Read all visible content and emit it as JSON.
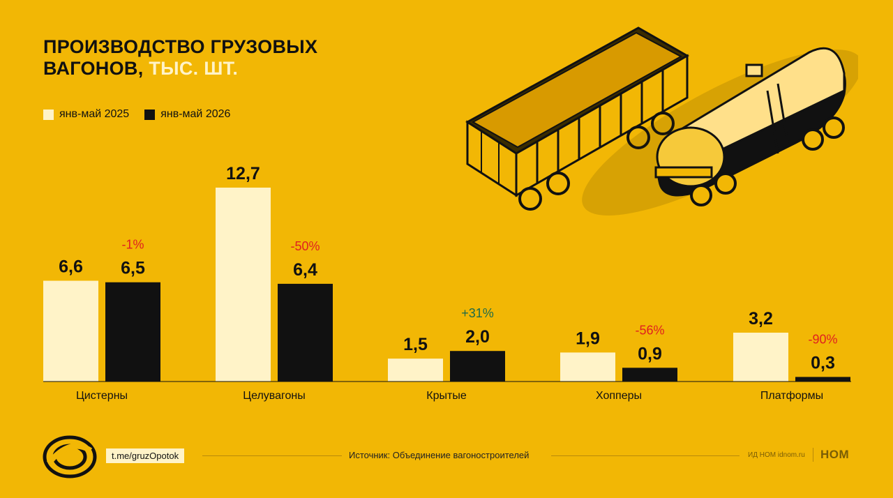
{
  "title": {
    "line1": "ПРОИЗВОДСТВО ГРУЗОВЫХ",
    "line2_main": "ВАГОНОВ,",
    "line2_unit": " ТЫС. ШТ."
  },
  "colors": {
    "background": "#F2B705",
    "series_2025": "#FFF3C8",
    "series_2026": "#111111",
    "negative_change": "#E02020",
    "positive_change": "#1F6B4A"
  },
  "chart_data": {
    "type": "bar",
    "categories": [
      "Цистерны",
      "Целувагоны",
      "Крытые",
      "Хопперы",
      "Платформы"
    ],
    "series": [
      {
        "name": "янв-май 2025",
        "values": [
          6.6,
          12.7,
          1.5,
          1.9,
          3.2
        ],
        "labels": [
          "6,6",
          "12,7",
          "1,5",
          "1,9",
          "3,2"
        ]
      },
      {
        "name": "янв-май 2026",
        "values": [
          6.5,
          6.4,
          2.0,
          0.9,
          0.3
        ],
        "labels": [
          "6,5",
          "6,4",
          "2,0",
          "0,9",
          "0,3"
        ]
      }
    ],
    "changes": [
      "-1%",
      "-50%",
      "+31%",
      "-56%",
      "-90%"
    ],
    "ylim": [
      0,
      12.7
    ],
    "legend_position": "top-left",
    "grid": false
  },
  "footer": {
    "telegram": "t.me/gruzOpotok",
    "source": "Источник: Объединение вагоностроителей",
    "publisher": "ИД НОМ idnom.ru",
    "brand": "НОМ"
  },
  "icons": {
    "logo": "track-rings-logo",
    "illustration": "freight-wagons-illustration"
  }
}
